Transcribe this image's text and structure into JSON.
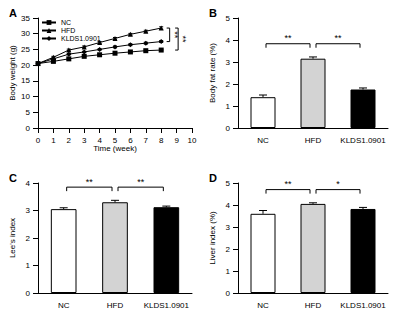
{
  "chart_data": [
    {
      "type": "line",
      "title": "A",
      "x_label": "Time (week)",
      "y_label": "Body weight (g)",
      "x": [
        0,
        1,
        2,
        3,
        4,
        5,
        6,
        7,
        8
      ],
      "xlim": [
        0,
        10
      ],
      "xticks": [
        0,
        1,
        2,
        3,
        4,
        5,
        6,
        7,
        8,
        9,
        10
      ],
      "ylim": [
        0,
        35
      ],
      "yticks": [
        0,
        5,
        10,
        15,
        20,
        25,
        30,
        35
      ],
      "grid": false,
      "legend": "upper left",
      "series": [
        {
          "name": "NC",
          "color": "#000000",
          "marker": "square",
          "line_style": "solid",
          "values": [
            20.5,
            21.2,
            22.0,
            22.8,
            23.3,
            23.8,
            24.2,
            24.6,
            24.8
          ],
          "errors": [
            0.2,
            0.2,
            0.2,
            0.2,
            0.2,
            0.2,
            0.2,
            0.2,
            0.2
          ]
        },
        {
          "name": "HFD",
          "color": "#000000",
          "marker": "triangle",
          "line_style": "solid",
          "values": [
            20.5,
            22.5,
            24.8,
            25.8,
            27.2,
            28.5,
            29.8,
            30.8,
            31.8
          ],
          "errors": [
            0.2,
            0.3,
            0.3,
            0.3,
            0.3,
            0.3,
            0.3,
            0.3,
            0.4
          ]
        },
        {
          "name": "KLDS1.0901",
          "color": "#000000",
          "marker": "diamond",
          "line_style": "solid",
          "values": [
            20.5,
            22.0,
            23.5,
            24.2,
            25.0,
            25.8,
            26.5,
            27.0,
            27.5
          ],
          "errors": [
            0.2,
            0.2,
            0.2,
            0.2,
            0.2,
            0.3,
            0.3,
            0.3,
            0.3
          ]
        }
      ],
      "significance": [
        {
          "from": "HFD",
          "to": "KLDS1.0901",
          "label": "**"
        },
        {
          "from": "HFD",
          "to": "NC",
          "label": "**"
        }
      ]
    },
    {
      "type": "bar",
      "title": "B",
      "y_label": "Body fat rate (%)",
      "categories": [
        "NC",
        "HFD",
        "KLDS1.0901"
      ],
      "values": [
        1.4,
        3.15,
        1.75
      ],
      "errors": [
        0.1,
        0.08,
        0.07
      ],
      "colors": [
        "#ffffff",
        "#d3d3d3",
        "#000000"
      ],
      "ylim": [
        0,
        5
      ],
      "yticks": [
        0,
        1,
        2,
        3,
        4,
        5
      ],
      "grid": false,
      "significance": [
        {
          "from": "NC",
          "to": "HFD",
          "label": "**"
        },
        {
          "from": "HFD",
          "to": "KLDS1.0901",
          "label": "**"
        }
      ]
    },
    {
      "type": "bar",
      "title": "C",
      "y_label": "Lee's index",
      "categories": [
        "NC",
        "HFD",
        "KLDS1.0901"
      ],
      "values": [
        3.05,
        3.3,
        3.12
      ],
      "errors": [
        0.05,
        0.07,
        0.04
      ],
      "colors": [
        "#ffffff",
        "#d3d3d3",
        "#000000"
      ],
      "ylim": [
        0,
        4
      ],
      "yticks": [
        0,
        1,
        2,
        3,
        4
      ],
      "grid": false,
      "significance": [
        {
          "from": "NC",
          "to": "HFD",
          "label": "**"
        },
        {
          "from": "HFD",
          "to": "KLDS1.0901",
          "label": "**"
        }
      ]
    },
    {
      "type": "bar",
      "title": "D",
      "y_label": "Liver index (%)",
      "categories": [
        "NC",
        "HFD",
        "KLDS1.0901"
      ],
      "values": [
        3.6,
        4.05,
        3.82
      ],
      "errors": [
        0.15,
        0.05,
        0.07
      ],
      "colors": [
        "#ffffff",
        "#d3d3d3",
        "#000000"
      ],
      "ylim": [
        0,
        5
      ],
      "yticks": [
        0,
        1,
        2,
        3,
        4,
        5
      ],
      "grid": false,
      "significance": [
        {
          "from": "NC",
          "to": "HFD",
          "label": "**"
        },
        {
          "from": "HFD",
          "to": "KLDS1.0901",
          "label": "*"
        }
      ]
    }
  ]
}
